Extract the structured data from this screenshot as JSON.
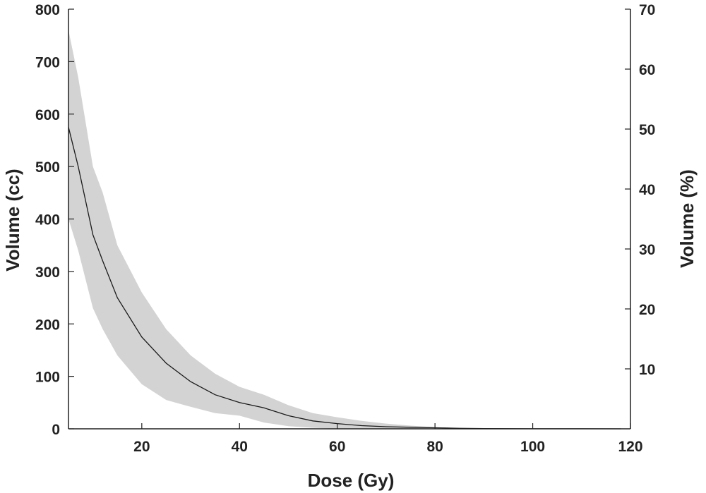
{
  "chart_data": {
    "type": "area",
    "title": "",
    "xlabel": "Dose (Gy)",
    "ylabel": "Volume (cc)",
    "y2label": "Volume (%)",
    "xlim": [
      5,
      120
    ],
    "ylim": [
      0,
      800
    ],
    "y2lim": [
      0,
      70
    ],
    "xticks": [
      20,
      40,
      60,
      80,
      100,
      120
    ],
    "yticks": [
      0,
      100,
      200,
      300,
      400,
      500,
      600,
      700,
      800
    ],
    "y2ticks": [
      10,
      20,
      30,
      40,
      50,
      60,
      70
    ],
    "grid": false,
    "colors": {
      "band": "#d3d3d3",
      "line": "#1a1a1a",
      "axis": "#222222"
    },
    "series": [
      {
        "role": "mean",
        "x": [
          5,
          7,
          10,
          12,
          15,
          20,
          25,
          30,
          35,
          40,
          45,
          50,
          55,
          60,
          65,
          70,
          75,
          80,
          85,
          90,
          100,
          110,
          118
        ],
        "y": [
          575,
          500,
          370,
          320,
          250,
          175,
          125,
          90,
          65,
          50,
          40,
          25,
          15,
          10,
          6,
          4,
          3,
          2,
          1,
          0.5,
          0.2,
          0.1,
          0
        ]
      },
      {
        "role": "upper",
        "x": [
          5,
          7,
          10,
          12,
          15,
          20,
          25,
          30,
          35,
          40,
          45,
          50,
          55,
          60,
          65,
          70,
          75,
          80,
          85,
          90,
          100,
          110,
          118
        ],
        "y": [
          760,
          670,
          500,
          450,
          350,
          260,
          190,
          140,
          105,
          80,
          65,
          45,
          30,
          22,
          15,
          10,
          6,
          3,
          1.5,
          0.8,
          0.4,
          0.2,
          0
        ]
      },
      {
        "role": "lower",
        "x": [
          5,
          7,
          10,
          12,
          15,
          20,
          25,
          30,
          35,
          40,
          45,
          50,
          55,
          60,
          65,
          70,
          75,
          80,
          85,
          90,
          100,
          110,
          118
        ],
        "y": [
          400,
          340,
          230,
          190,
          140,
          85,
          55,
          42,
          30,
          25,
          12,
          5,
          2,
          0,
          0,
          0,
          0,
          0,
          0,
          0,
          0,
          0,
          0
        ]
      }
    ]
  }
}
